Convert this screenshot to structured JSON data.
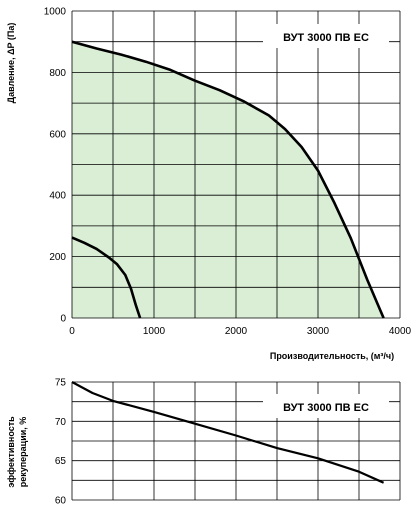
{
  "chart_data": [
    {
      "type": "area",
      "model_label": "ВУТ 3000 ПВ ЕС",
      "xlabel": "Производительность, (м³/ч)",
      "ylabel": "Давление, ΔP (Па)",
      "xlim": [
        0,
        4000
      ],
      "ylim": [
        0,
        1000
      ],
      "x_ticks": [
        "0",
        "1000",
        "2000",
        "3000",
        "4000"
      ],
      "y_ticks": [
        "0",
        "200",
        "400",
        "600",
        "800",
        "1000"
      ],
      "grid": true,
      "fill_color": "#d9eed5",
      "line_color": "#000000",
      "series": [
        {
          "x": [
            0,
            300,
            600,
            900,
            1200,
            1500,
            1800,
            2100,
            2400,
            2600,
            2800,
            3000,
            3200,
            3400,
            3600,
            3800
          ],
          "y": [
            900,
            878,
            858,
            835,
            808,
            773,
            742,
            705,
            660,
            615,
            557,
            480,
            375,
            260,
            125,
            0
          ]
        },
        {
          "x": [
            0,
            150,
            300,
            450,
            550,
            650,
            720,
            780,
            830
          ],
          "y": [
            262,
            245,
            225,
            197,
            175,
            140,
            95,
            40,
            0
          ]
        }
      ]
    },
    {
      "type": "line",
      "model_label": "ВУТ 3000 ПВ ЕС",
      "ylabel_line1": "эффективность",
      "ylabel_line2": "рекуперации, %",
      "xlim": [
        0,
        4000
      ],
      "ylim": [
        60,
        75
      ],
      "y_ticks": [
        "60",
        "65",
        "70",
        "75"
      ],
      "grid": true,
      "line_color": "#000000",
      "series": [
        {
          "x": [
            0,
            250,
            500,
            1000,
            1500,
            2000,
            2500,
            3000,
            3500,
            3800
          ],
          "y": [
            75,
            73.6,
            72.6,
            71.2,
            69.7,
            68.2,
            66.6,
            65.3,
            63.6,
            62.2
          ]
        }
      ]
    }
  ]
}
